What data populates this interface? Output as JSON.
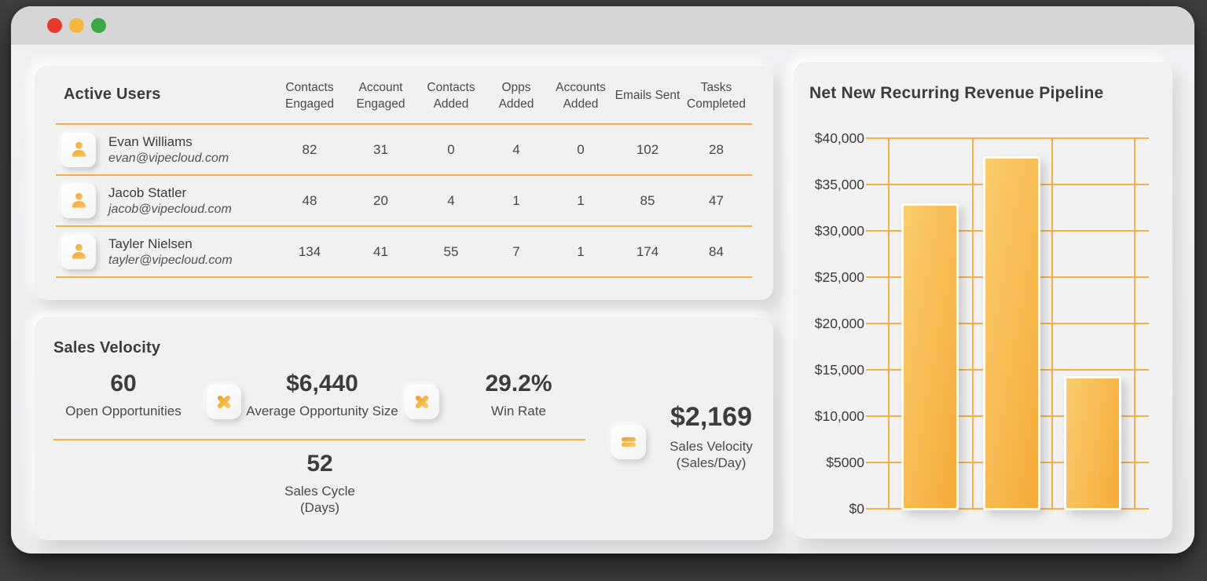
{
  "colors": {
    "accent": "#F5B044",
    "traffic_lights": [
      "#E8392F",
      "#F5B73D",
      "#3BA746"
    ],
    "bar_gradient": [
      "#FACD6E",
      "#F5AB39"
    ],
    "gridline": "#F5B044"
  },
  "window": {
    "traffic_lights": [
      {
        "name": "close"
      },
      {
        "name": "minimize"
      },
      {
        "name": "maximize"
      }
    ]
  },
  "active_users": {
    "title": "Active Users",
    "columns": [
      "Contacts Engaged",
      "Account Engaged",
      "Contacts Added",
      "Opps Added",
      "Accounts Added",
      "Emails Sent",
      "Tasks Completed"
    ],
    "rows": [
      {
        "name": "Evan Williams",
        "email": "evan@vipecloud.com",
        "values": [
          "82",
          "31",
          "0",
          "4",
          "0",
          "102",
          "28"
        ]
      },
      {
        "name": "Jacob Statler",
        "email": "jacob@vipecloud.com",
        "values": [
          "48",
          "20",
          "4",
          "1",
          "1",
          "85",
          "47"
        ]
      },
      {
        "name": "Tayler Nielsen",
        "email": "tayler@vipecloud.com",
        "values": [
          "134",
          "41",
          "55",
          "7",
          "1",
          "174",
          "84"
        ]
      }
    ]
  },
  "sales_velocity": {
    "title": "Sales Velocity",
    "open_opportunities": {
      "value": "60",
      "label": "Open Opportunities"
    },
    "average_opportunity_size": {
      "value": "$6,440",
      "label": "Average Opportunity Size"
    },
    "win_rate": {
      "value": "29.2%",
      "label": "Win Rate"
    },
    "sales_cycle": {
      "value": "52",
      "label": "Sales Cycle",
      "sublabel": "(Days)"
    },
    "result": {
      "value": "$2,169",
      "label": "Sales Velocity",
      "sublabel": "(Sales/Day)"
    }
  },
  "chart_data": {
    "type": "bar",
    "title": "Net New Recurring Revenue Pipeline",
    "categories": [
      "",
      "",
      ""
    ],
    "values": [
      32600,
      37700,
      14000
    ],
    "ylim": [
      0,
      40000
    ],
    "yticks": [
      {
        "label": "$40,000",
        "value": 40000
      },
      {
        "label": "$35,000",
        "value": 35000
      },
      {
        "label": "$30,000",
        "value": 30000
      },
      {
        "label": "$25,000",
        "value": 25000
      },
      {
        "label": "$20,000",
        "value": 20000
      },
      {
        "label": "$15,000",
        "value": 15000
      },
      {
        "label": "$10,000",
        "value": 10000
      },
      {
        "label": "$5000",
        "value": 5000
      },
      {
        "label": "$0",
        "value": 0
      }
    ],
    "grid": "horizontal+vertical",
    "legend": false,
    "xlabel": "",
    "ylabel": ""
  }
}
